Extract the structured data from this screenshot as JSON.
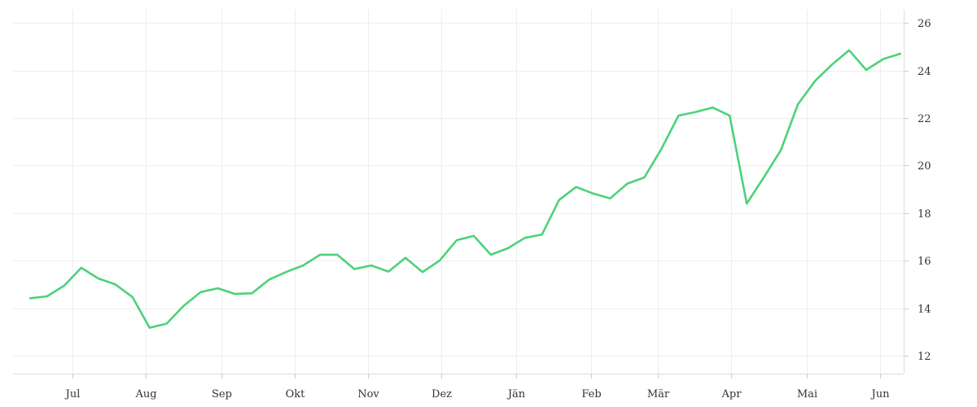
{
  "chart_data": {
    "type": "line",
    "title": "",
    "xlabel": "",
    "ylabel": "",
    "x_ticks": [
      {
        "label": "Jul",
        "week": 2.5
      },
      {
        "label": "Aug",
        "week": 6.8
      },
      {
        "label": "Sep",
        "week": 11.2
      },
      {
        "label": "Okt",
        "week": 15.5
      },
      {
        "label": "Nov",
        "week": 19.8
      },
      {
        "label": "Dez",
        "week": 24.1
      },
      {
        "label": "Jän",
        "week": 28.5
      },
      {
        "label": "Feb",
        "week": 32.9
      },
      {
        "label": "Mär",
        "week": 36.8
      },
      {
        "label": "Apr",
        "week": 41.1
      },
      {
        "label": "Mai",
        "week": 45.5
      },
      {
        "label": "Jun",
        "week": 49.8
      }
    ],
    "y_ticks": [
      12,
      14,
      16,
      18,
      20,
      22,
      24,
      26
    ],
    "ylim": [
      11.25,
      26.55
    ],
    "xlim": [
      -1,
      51.2
    ],
    "y_axis_position": "right",
    "grid": true,
    "legend": "none",
    "series": [
      {
        "color": "#4cd27a",
        "values": [
          14.42,
          14.5,
          14.95,
          15.7,
          15.25,
          15.0,
          14.47,
          13.18,
          13.35,
          14.1,
          14.68,
          14.84,
          14.6,
          14.63,
          15.2,
          15.52,
          15.8,
          16.25,
          16.25,
          15.65,
          15.8,
          15.54,
          16.12,
          15.52,
          16.0,
          16.86,
          17.04,
          16.25,
          16.52,
          16.96,
          17.1,
          18.55,
          19.1,
          18.82,
          18.62,
          19.24,
          19.5,
          20.7,
          22.1,
          22.25,
          22.44,
          22.1,
          18.4,
          19.5,
          20.65,
          22.58,
          23.55,
          24.25,
          24.85,
          24.02,
          24.48,
          24.7
        ]
      }
    ]
  }
}
